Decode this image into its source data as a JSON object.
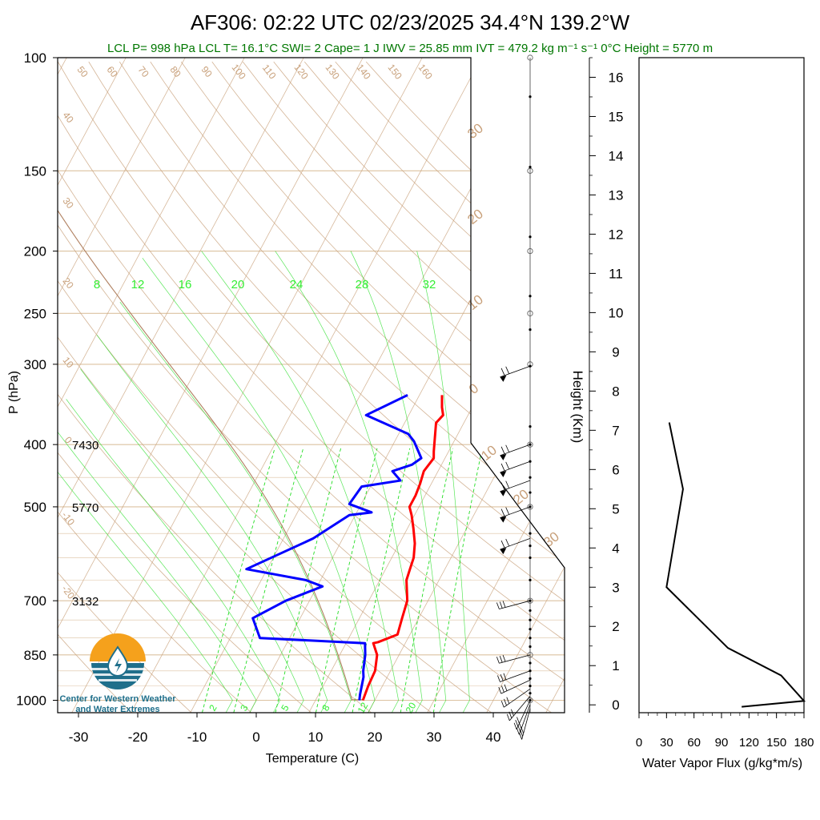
{
  "title": "AF306: 02:22 UTC 02/23/2025  34.4°N 139.2°W",
  "subtitle": "LCL P= 998 hPa  LCL T= 16.1°C  SWI= 2  Cape= 1 J  IWV = 25.85 mm  IVT = 479.2 kg m⁻¹ s⁻¹  0°C Height = 5770 m",
  "colors": {
    "temperature": "#ff0000",
    "dewpoint": "#0000ff",
    "dry_adiabat": "#c8a07a",
    "isotherm": "#c8a07a",
    "mixing_ratio": "#22dd22",
    "parcel": "#b08060",
    "subtitle": "#007700",
    "logo_orange": "#f5a11c",
    "logo_teal": "#1f6f8b"
  },
  "logo": {
    "name": "Center for Western Weather and Water Extremes",
    "line1": "Center for Western Weather",
    "line2": "and Water Extremes"
  },
  "height_annotations": [
    {
      "label": "7430",
      "p": 400
    },
    {
      "label": "5770",
      "p": 500
    },
    {
      "label": "3132",
      "p": 700
    }
  ],
  "chart_data": [
    {
      "type": "line",
      "name": "skew-t",
      "xlabel": "Temperature (C)",
      "ylabel": "P (hPa)",
      "xticks": [
        -30,
        -20,
        -10,
        0,
        10,
        20,
        30,
        40
      ],
      "yticks": [
        100,
        150,
        200,
        250,
        300,
        400,
        500,
        700,
        850,
        1000
      ],
      "xlim": [
        -34,
        47
      ],
      "ylim": [
        1050,
        100
      ],
      "yscale": "log",
      "skew_deg_per_decade": 58,
      "series": [
        {
          "role": "temperature",
          "points": [
            [
              18,
              1000
            ],
            [
              17.6,
              950
            ],
            [
              17.4,
              900
            ],
            [
              16.3,
              850
            ],
            [
              14.6,
              815
            ],
            [
              15.3,
              812
            ],
            [
              17.9,
              790
            ],
            [
              17.2,
              745
            ],
            [
              16.5,
              700
            ],
            [
              14.5,
              650
            ],
            [
              14.1,
              625
            ],
            [
              13.7,
              600
            ],
            [
              12.6,
              570
            ],
            [
              11.0,
              540
            ],
            [
              9.5,
              515
            ],
            [
              8.4,
              500
            ],
            [
              8.4,
              480
            ],
            [
              8.1,
              460
            ],
            [
              7.6,
              440
            ],
            [
              8.1,
              420
            ],
            [
              7.5,
              410
            ],
            [
              6.7,
              395
            ],
            [
              5.3,
              370
            ],
            [
              5.8,
              360
            ],
            [
              4.9,
              350
            ],
            [
              3.8,
              335
            ]
          ]
        },
        {
          "role": "dewpoint",
          "points": [
            [
              17.4,
              1000
            ],
            [
              17.0,
              980
            ],
            [
              16.0,
              920
            ],
            [
              15.4,
              900
            ],
            [
              14.3,
              850
            ],
            [
              13.2,
              815
            ],
            [
              -5.0,
              800
            ],
            [
              -8.0,
              745
            ],
            [
              -4.0,
              700
            ],
            [
              0.9,
              665
            ],
            [
              -2.5,
              650
            ],
            [
              -13.5,
              625
            ],
            [
              -5.0,
              560
            ],
            [
              -1.0,
              515
            ],
            [
              2.5,
              510
            ],
            [
              -2.0,
              495
            ],
            [
              -1.5,
              465
            ],
            [
              4.5,
              455
            ],
            [
              2.3,
              440
            ],
            [
              5.0,
              430
            ],
            [
              6.0,
              420
            ],
            [
              3.2,
              395
            ],
            [
              1.6,
              385
            ],
            [
              -7.2,
              360
            ],
            [
              -2.0,
              335
            ]
          ]
        }
      ],
      "isotherm_labels": [
        "50",
        "60",
        "70",
        "80",
        "90",
        "100",
        "110",
        "120",
        "130",
        "140",
        "150",
        "160",
        "40",
        "30",
        "20",
        "10",
        "0",
        "-10",
        "-20",
        "30",
        "20",
        "10",
        "0",
        "10",
        "20",
        "30"
      ],
      "mixing_ratio_top_labels": [
        "8",
        "12",
        "16",
        "20",
        "24",
        "28",
        "32"
      ],
      "mixing_ratio_bottom_labels": [
        "2",
        "3",
        "5",
        "8",
        "12",
        "20"
      ]
    },
    {
      "type": "line",
      "name": "water-vapor-flux",
      "xlabel": "Water Vapor Flux (g/kg*m/s)",
      "ylabel": "Height (Km)",
      "xticks": [
        0,
        30,
        60,
        90,
        120,
        150,
        180
      ],
      "yticks": [
        0,
        1,
        2,
        3,
        4,
        5,
        6,
        7,
        8,
        9,
        10,
        11,
        12,
        13,
        14,
        15,
        16
      ],
      "xlim": [
        0,
        180
      ],
      "ylim": [
        -0.2,
        16.5
      ],
      "values": [
        [
          112,
          -0.05
        ],
        [
          180,
          0.1
        ],
        [
          155,
          0.75
        ],
        [
          97,
          1.45
        ],
        [
          30,
          3.0
        ],
        [
          48,
          5.5
        ],
        [
          33,
          7.2
        ]
      ]
    }
  ]
}
